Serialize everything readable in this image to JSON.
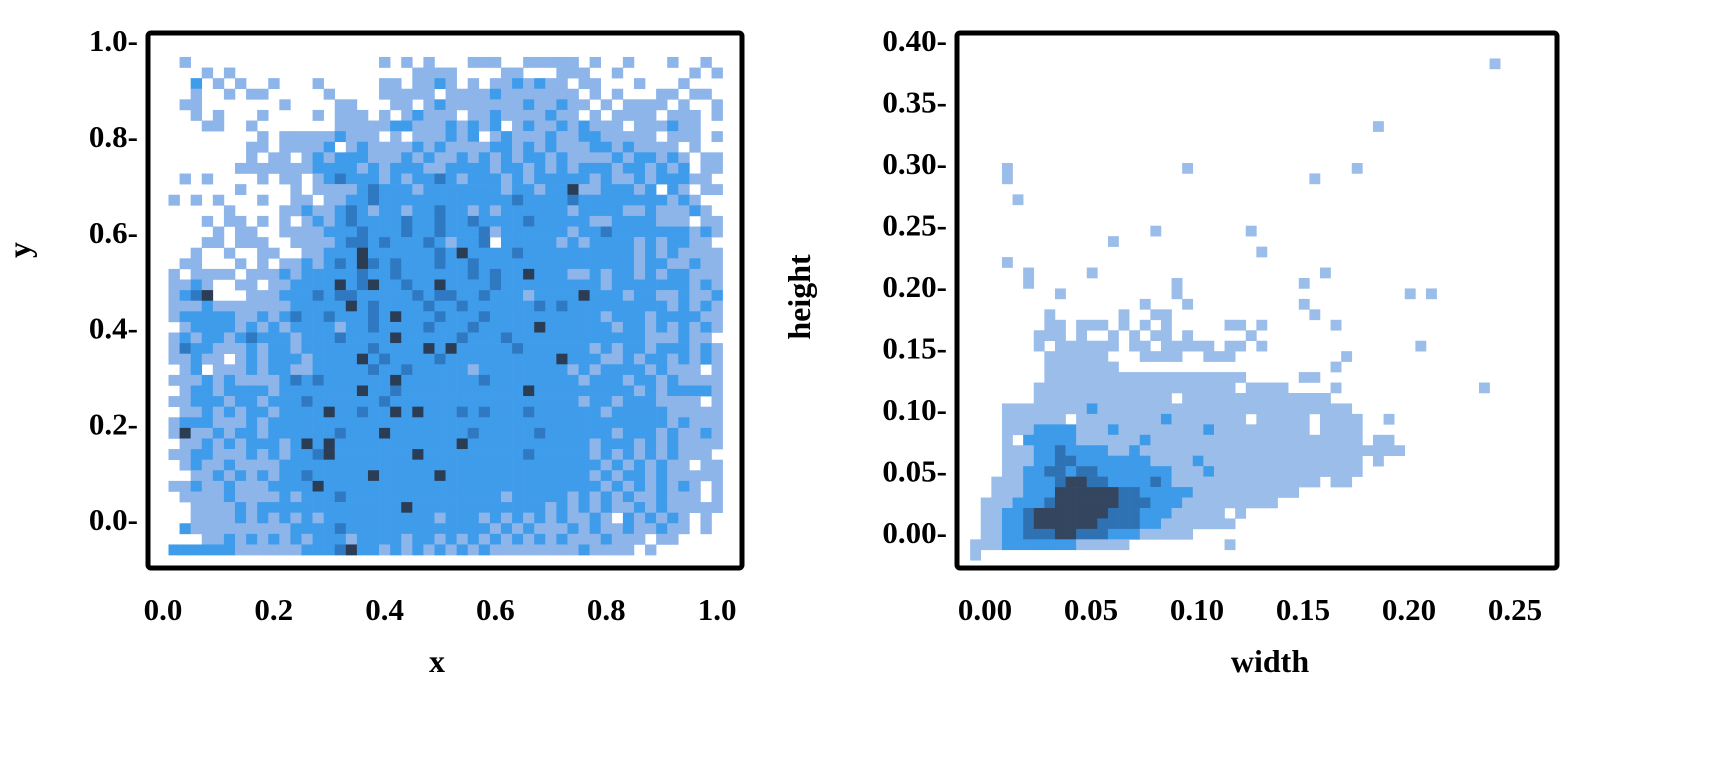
{
  "chart_data": [
    {
      "type": "heatmap",
      "subtype": "2d-histogram",
      "xlabel": "x",
      "ylabel": "y",
      "xlim": [
        -0.027,
        1.045
      ],
      "ylim": [
        -0.102,
        1.015
      ],
      "xticks": [
        0.0,
        0.2,
        0.4,
        0.6,
        0.8,
        1.0
      ],
      "xtick_labels": [
        "0.0",
        "0.2",
        "0.4",
        "0.6",
        "0.8",
        "1.0"
      ],
      "yticks": [
        0.0,
        0.2,
        0.4,
        0.6,
        0.8,
        1.0
      ],
      "ytick_labels": [
        "0.0-",
        "0.2-",
        "0.4-",
        "0.6-",
        "0.8-",
        "1.0-"
      ],
      "grid": false,
      "bins_x_range": [
        0.01,
        1.01
      ],
      "bins_y_range": [
        -0.075,
        0.965
      ],
      "level_colors": [
        "#ffffff",
        "#8db5ea",
        "#3f9ceb",
        "#2f79c2",
        "#2b3c55"
      ],
      "density_levels_top_to_bottom": [
        "01000000000000000001010100011100111110100100010010",
        "00010100000000000000001111000011000111001000000101",
        "00201010010001000001101121010112121101100010001000",
        "00100101100000100001111101111211111110101000110110",
        "01100000001000011000110121111111211211010111101001",
        "00101000100001011101012111011211112110101111011101",
        "00011001000000011111221112121201211212111011121100",
        "00000000101111121110101112120121112112211111011101",
        "00000001101111201211112121111221212111221211110100",
        "00000001011012122211121211212121221211112122121011",
        "00000011111112222121222112222122121212221221212011",
        "01010000101101232221212232122212122222121121222110",
        "00000010000101111232221222222212212241122212021011",
        "10101000100110112232222222222223222232222222212100",
        "00000100001121123212212232212122222212222112111210",
        "00010110101012123222232232232222322222112222111011",
        "00001011001111222322232232223122222212232222222121",
        "00011011100111123323222321223022222121222212122110",
        "00100100110011222422222232422223222222222212121111",
        "01100010101121232432322232232222222222222212211211",
        "10111101112122222322322222232322422211212212122111",
        "11210011011222242342232242222322222222212222222121",
        "12340001112223233222223233223222122224222122112112",
        "11121111111222224232222322322222232322222222212121",
        "12222211212322322232422232223222222222212221222211",
        "01222212121222212232222322232222242222221221212121",
        "12122123222122232222422222322232222222222221112110",
        "13221112122122222232222424222223222222121221222121",
        "11211012122212222423222232222222222422211212212121",
        "01201112122112222232232222212222222212122221211101",
        "11121211112323222222422222223222222221222122121111",
        "01221222212222222422322222222222422222222212122221",
        "11222122122232222223222222222222222221221222111101",
        "01121212212222422322424222323222322222212222211111",
        "12221112122222222222222222222222222222222222212111",
        "14112122122222232224222222232222232222221222121121",
        "01121212221242422222222222422222222222122212121111",
        "11221112121223422222224222222222322222121212121110",
        "01211211112222222222222222222222222222212121211011",
        "00112121212232222242222242222222222222121221211111",
        "11211211122224222222222222222222222222212121212101",
        "01111211112122232222222222222212222212121211211101",
        "00111121222222222222242222222222221212121121211111",
        "00111121212121222222222212221212121211210212121010",
        "02111111111222232222222222222121211121211211211010",
        "00011212121212221222212212121212121211121110110000",
        "22222211111122234221212121212111111112111101000000"
      ]
    },
    {
      "type": "heatmap",
      "subtype": "2d-histogram",
      "xlabel": "width",
      "ylabel": "height",
      "xlim": [
        -0.0132,
        0.2698
      ],
      "ylim": [
        -0.0293,
        0.4057
      ],
      "xticks": [
        0.0,
        0.05,
        0.1,
        0.15,
        0.2,
        0.25
      ],
      "xtick_labels": [
        "0.00",
        "0.05",
        "0.10",
        "0.15",
        "0.20",
        "0.25"
      ],
      "yticks": [
        0.0,
        0.05,
        0.1,
        0.15,
        0.2,
        0.25,
        0.3,
        0.35,
        0.4
      ],
      "ytick_labels": [
        "0.00-",
        "0.05-",
        "0.10-",
        "0.15-",
        "0.20-",
        "0.25-",
        "0.30-",
        "0.35-",
        "0.40-"
      ],
      "grid": false,
      "bins_x_range": [
        -0.012,
        0.263
      ],
      "bins_y_range": [
        -0.023,
        0.385
      ],
      "level_colors": [
        "#ffffff",
        "#9bbde9",
        "#3d9be9",
        "#2f72b3",
        "#34465f"
      ],
      "density_levels_top_to_bottom": [
        "000000000000000000000000000000000000000000000000001",
        "",
        "",
        "",
        "",
        "",
        "0000000000000000000000000000000000000001",
        "",
        "",
        "",
        "00001000000000000000010000000000000001",
        "0000100000000000000000000000000001",
        "",
        "000001",
        "",
        "",
        "0000000000000000001000000001",
        "000000000000001",
        "00000000000000000000000000001",
        "00001",
        "00000010000010000000000000000000001",
        "000000100000000000001000000000001",
        "000000000100000000001000000000000000000000101",
        "000000000000000001000100000000001",
        "0000000010000001001100000000000001",
        "000000001101110101010000011010000001",
        "0000000111010010101101000001",
        "00000001011111101101111101101000000000000001000000000000001",
        "0000000011111100011110011100000000001",
        "000000001111111000000000000000000001",
        "0000000011111111111111111110000011",
        "00000001111111111111111111011110000100000000000001",
        "000000011111111111110111111111111110",
        "0000111111112111111111111111111111111",
        "00001111110111111112111111101111101111001",
        "00001112222111211111111211111111101111",
        "00001022222111111211111111111111111111011",
        "000011122322221121111111111111111111111111",
        "0000111223322222221111211111111111111101",
        "00001122332332222222111211111111111111",
        "0001112223443322223211111111111111011",
        "00011122244444433222221111111111",
        "001112223444444333222111111111",
        "001122344444443332221111101",
        "00112234444443333221111111",
        "0011223334433322211111",
        "01112222222111110000000001",
        "01"
      ]
    }
  ]
}
